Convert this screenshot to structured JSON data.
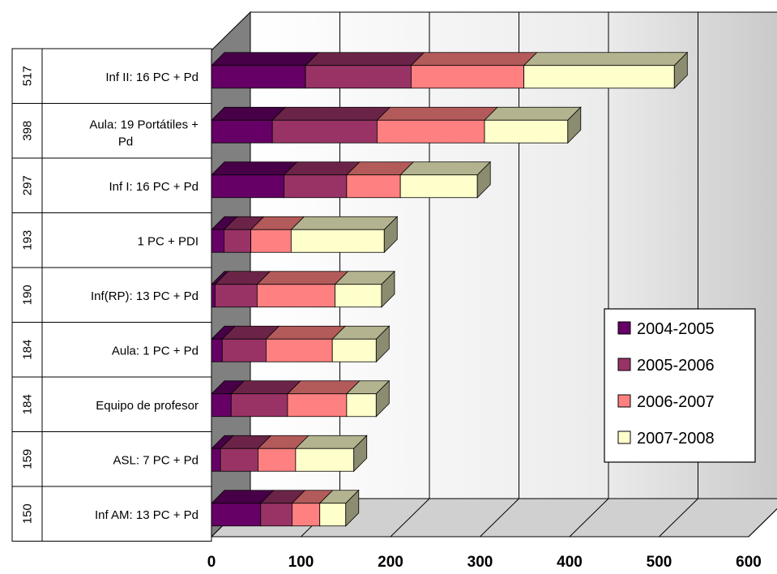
{
  "chart_data": {
    "type": "bar",
    "orientation": "horizontal",
    "stacked": true,
    "three_d": true,
    "categories": [
      {
        "label": "Inf II: 16 PC + Pd",
        "total": "517"
      },
      {
        "label": "Aula: 19 Portátiles + Pd",
        "total": "398"
      },
      {
        "label": "Inf I: 16 PC + Pd",
        "total": "297"
      },
      {
        "label": "1 PC + PDI",
        "total": "193"
      },
      {
        "label": "Inf(RP): 13 PC + Pd",
        "total": "190"
      },
      {
        "label": "Aula: 1 PC + Pd",
        "total": "184"
      },
      {
        "label": "Equipo de profesor",
        "total": "184"
      },
      {
        "label": "ASL: 7 PC + Pd",
        "total": "159"
      },
      {
        "label": "Inf AM: 13 PC + Pd",
        "total": "150"
      }
    ],
    "series": [
      {
        "name": "2004-2005",
        "color": "#660066",
        "values": [
          105,
          68,
          81,
          14,
          4,
          12,
          22,
          10,
          55
        ]
      },
      {
        "name": "2005-2006",
        "color": "#993366",
        "values": [
          118,
          117,
          70,
          30,
          47,
          49,
          63,
          42,
          35
        ]
      },
      {
        "name": "2006-2007",
        "color": "#ff8080",
        "values": [
          126,
          120,
          60,
          45,
          87,
          74,
          66,
          42,
          31
        ]
      },
      {
        "name": "2007-2008",
        "color": "#ffffcc",
        "values": [
          168,
          93,
          86,
          104,
          52,
          49,
          33,
          65,
          29
        ]
      }
    ],
    "x_ticks": [
      "0",
      "100",
      "200",
      "300",
      "400",
      "500",
      "600"
    ],
    "xlim": [
      0,
      600
    ],
    "grid": true,
    "legend": "right"
  }
}
